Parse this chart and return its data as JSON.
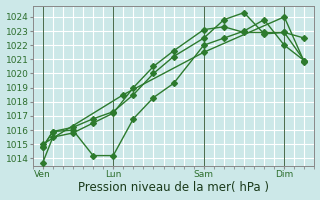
{
  "xlabel": "Pression niveau de la mer( hPa )",
  "bg_color": "#cce8e8",
  "plot_bg_color": "#cce8e8",
  "grid_color": "#ffffff",
  "line_color": "#2d7a2d",
  "ylim": [
    1013.5,
    1024.8
  ],
  "xlim": [
    -0.5,
    13.5
  ],
  "yticks": [
    1014,
    1015,
    1016,
    1017,
    1018,
    1019,
    1020,
    1021,
    1022,
    1023,
    1024
  ],
  "xtick_labels": [
    "Ven",
    "Lun",
    "Sam",
    "Dim"
  ],
  "xtick_positions": [
    0,
    3.5,
    8,
    12
  ],
  "vline_positions": [
    0,
    3.5,
    8,
    12
  ],
  "series1_x": [
    0,
    0.5,
    1.5,
    2.5,
    3.5,
    4.5,
    5.5,
    6.5,
    8,
    9,
    10,
    11,
    12,
    13
  ],
  "series1_y": [
    1013.7,
    1015.5,
    1015.8,
    1016.5,
    1017.2,
    1019.0,
    1020.5,
    1021.6,
    1023.1,
    1023.3,
    1022.9,
    1022.9,
    1022.9,
    1022.5
  ],
  "series2_x": [
    0,
    0.5,
    1.5,
    2.5,
    3.5,
    4.5,
    5.5,
    6.5,
    8,
    9,
    10,
    11,
    12,
    13
  ],
  "series2_y": [
    1014.8,
    1015.9,
    1016.0,
    1014.2,
    1014.2,
    1016.8,
    1018.3,
    1019.3,
    1022.0,
    1022.5,
    1023.0,
    1023.8,
    1022.0,
    1020.9
  ],
  "series3_x": [
    0,
    0.5,
    1.5,
    2.5,
    3.5,
    4.5,
    5.5,
    6.5,
    8,
    9,
    10,
    11,
    12,
    13
  ],
  "series3_y": [
    1014.8,
    1015.9,
    1016.2,
    1016.8,
    1017.3,
    1018.5,
    1020.0,
    1021.2,
    1022.5,
    1023.8,
    1024.3,
    1022.8,
    1022.9,
    1020.9
  ],
  "series4_x": [
    0,
    4,
    8,
    12,
    13
  ],
  "series4_y": [
    1015.0,
    1018.5,
    1021.5,
    1024.0,
    1020.8
  ],
  "marker_size": 3,
  "line_width": 1.0,
  "tick_fontsize": 6.5,
  "xlabel_fontsize": 8.5,
  "tick_color": "#2d6e2d",
  "spine_color": "#888888"
}
